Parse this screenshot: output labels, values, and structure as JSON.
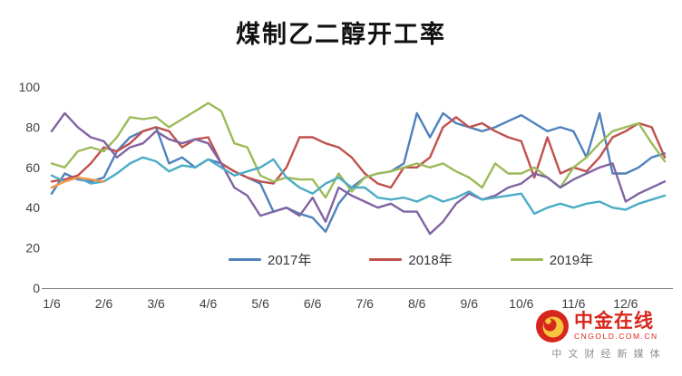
{
  "title": "煤制乙二醇开工率",
  "chart_data": {
    "type": "line",
    "title": "煤制乙二醇开工率",
    "xlabel": "",
    "ylabel": "",
    "ylim": [
      0,
      100
    ],
    "y_ticks": [
      0,
      20,
      40,
      60,
      80,
      100
    ],
    "x_tick_labels": [
      "1/6",
      "2/6",
      "3/6",
      "4/6",
      "5/6",
      "6/6",
      "7/6",
      "8/6",
      "9/6",
      "10/6",
      "11/6",
      "12/6"
    ],
    "points_per_series": 48,
    "ticks_every": 4,
    "grid": false,
    "legend_position": "bottom-inside",
    "series": [
      {
        "name": "2017年",
        "color": "#4F81BD",
        "legend": true,
        "values": [
          47,
          57,
          54,
          53,
          55,
          68,
          75,
          78,
          80,
          62,
          65,
          60,
          64,
          62,
          58,
          55,
          52,
          38,
          40,
          37,
          35,
          28,
          42,
          50,
          55,
          57,
          58,
          62,
          87,
          75,
          87,
          82,
          80,
          78,
          80,
          83,
          86,
          82,
          78,
          80,
          78,
          65,
          87,
          57,
          57,
          60,
          65,
          67
        ]
      },
      {
        "name": "2018年",
        "color": "#C0504D",
        "legend": true,
        "values": [
          53,
          54,
          56,
          62,
          70,
          68,
          72,
          78,
          80,
          78,
          70,
          74,
          75,
          62,
          58,
          55,
          53,
          52,
          60,
          75,
          75,
          72,
          70,
          65,
          57,
          52,
          50,
          60,
          60,
          65,
          80,
          85,
          80,
          82,
          78,
          75,
          73,
          55,
          75,
          57,
          60,
          58,
          65,
          75,
          78,
          82,
          80,
          65
        ]
      },
      {
        "name": "2019年",
        "color": "#9BBB59",
        "legend": true,
        "values": [
          62,
          60,
          68,
          70,
          68,
          75,
          85,
          84,
          85,
          80,
          84,
          88,
          92,
          88,
          72,
          70,
          56,
          53,
          55,
          54,
          54,
          45,
          57,
          48,
          55,
          57,
          58,
          60,
          62,
          60,
          62,
          58,
          55,
          50,
          62,
          57,
          57,
          60,
          55,
          50,
          60,
          65,
          72,
          78,
          80,
          82,
          72,
          63
        ]
      },
      {
        "name": "series-purple",
        "color": "#8064A2",
        "legend": false,
        "values": [
          78,
          87,
          80,
          75,
          73,
          65,
          70,
          72,
          78,
          74,
          72,
          74,
          72,
          62,
          50,
          46,
          36,
          38,
          40,
          36,
          45,
          33,
          50,
          46,
          43,
          40,
          42,
          38,
          38,
          27,
          33,
          42,
          47,
          44,
          46,
          50,
          52,
          57,
          55,
          50,
          54,
          57,
          60,
          62,
          43,
          47,
          50,
          53
        ]
      },
      {
        "name": "series-teal",
        "color": "#4BACC6",
        "legend": false,
        "values": [
          56,
          53,
          55,
          52,
          53,
          57,
          62,
          65,
          63,
          58,
          61,
          60,
          64,
          60,
          56,
          58,
          60,
          64,
          55,
          50,
          47,
          52,
          55,
          50,
          50,
          45,
          44,
          45,
          43,
          46,
          43,
          45,
          48,
          44,
          45,
          46,
          47,
          37,
          40,
          42,
          40,
          42,
          43,
          40,
          39,
          42,
          44,
          46
        ]
      },
      {
        "name": "series-orange",
        "color": "#F79646",
        "legend": false,
        "values": [
          50,
          53,
          55,
          54,
          53
        ]
      }
    ]
  },
  "footer_logo": {
    "brand": "中金在线",
    "domain": "CNGOLD.COM.CN",
    "tagline": "中 文 财 经 新 媒 体"
  }
}
